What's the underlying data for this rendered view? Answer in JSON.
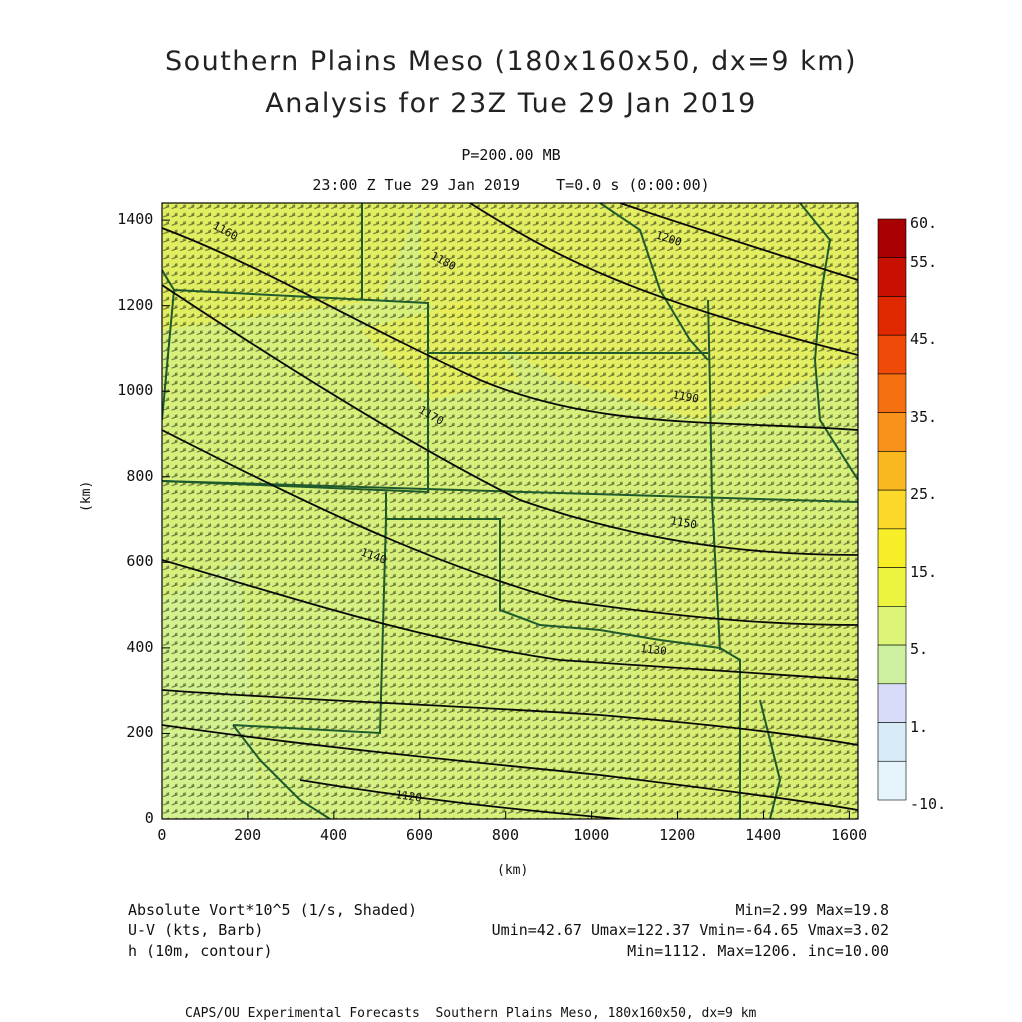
{
  "title_line1": "Southern Plains Meso (180x160x50, dx=9 km)",
  "title_line2": "Analysis for 23Z Tue 29 Jan 2019",
  "level": "P=200.00 MB",
  "valid_time": "23:00 Z Tue 29 Jan 2019    T=0.0 s (0:00:00)",
  "axes": {
    "x_label": "(km)",
    "y_label": "(km)",
    "x_ticks": [
      "0",
      "200",
      "400",
      "600",
      "800",
      "1000",
      "1200",
      "1400",
      "1600"
    ],
    "y_ticks": [
      "0",
      "200",
      "400",
      "600",
      "800",
      "1000",
      "1200",
      "1400"
    ],
    "x_range": [
      0,
      1620
    ],
    "y_range": [
      0,
      1440
    ]
  },
  "colorbar": {
    "labels": [
      "60.",
      "55.",
      "45.",
      "35.",
      "25.",
      "15.",
      "5.",
      "1.",
      "-10."
    ],
    "colors": [
      "#a80000",
      "#c81000",
      "#e02800",
      "#f04a08",
      "#f46f10",
      "#f8921a",
      "#fab820",
      "#fcd82a",
      "#f8ee28",
      "#ecf440",
      "#dcf478",
      "#ccf0a0",
      "#d8dcf8",
      "#d8ecf8",
      "#e6f4fc"
    ]
  },
  "contour_labels": [
    "1200",
    "1190",
    "1180",
    "1170",
    "1160",
    "1150",
    "1140",
    "1130",
    "1120"
  ],
  "footer": {
    "shaded_desc": "Absolute Vort*10^5 (1/s, Shaded)",
    "shaded_stats": "Min=2.99 Max=19.8",
    "barb_desc": "U-V (kts, Barb)",
    "barb_stats": "Umin=42.67 Umax=122.37 Vmin=-64.65 Vmax=3.02",
    "contour_desc": "h (10m, contour)",
    "contour_stats": "Min=1112. Max=1206. inc=10.00",
    "credit": "CAPS/OU Experimental Forecasts  Southern Plains Meso, 180x160x50, dx=9 km"
  }
}
